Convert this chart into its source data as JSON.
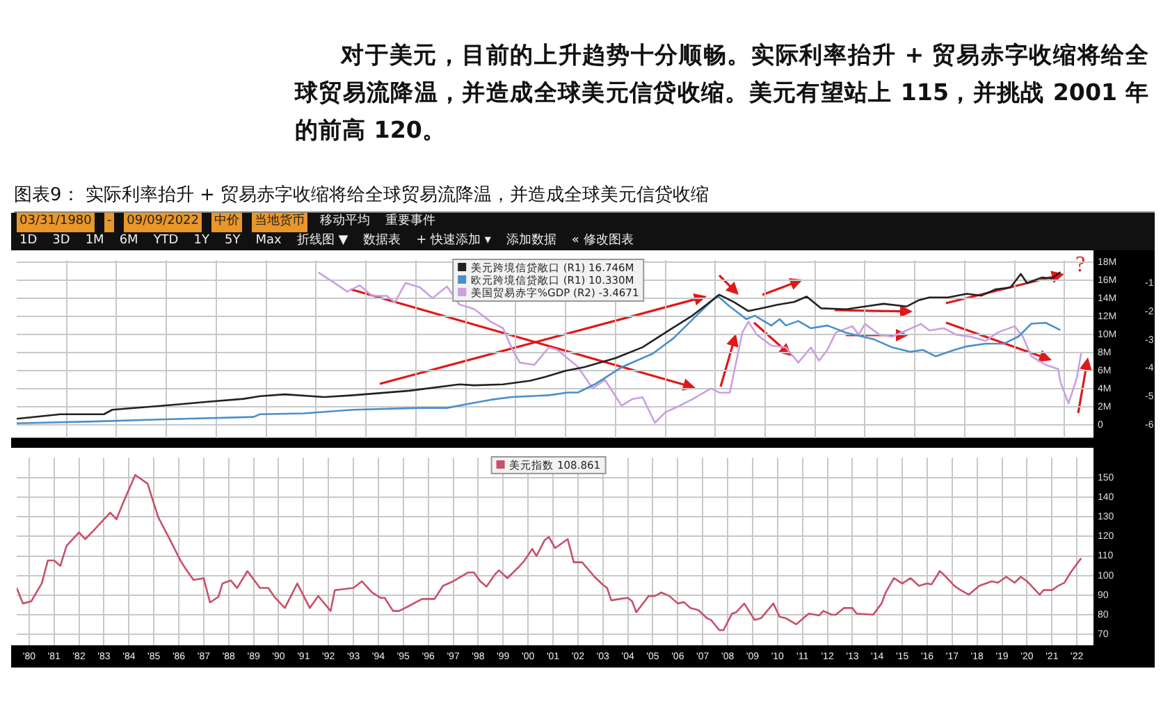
{
  "chart_data": [
    {
      "type": "line",
      "title": "图表9： 实际利率抬升 + 贸易赤字收缩将给全球贸易流降温，并造成全球美元信贷收缩",
      "subtitle": "对于美元，目前的上升趋势十分顺畅。实际利率抬升 + 贸易赤字收缩将给全球贸易流降温，并造成全球美元信贷收缩。美元有望站上 115，并挑战 2001 年的前高 120。",
      "annotations": [
        "03/31/1980",
        "-",
        "09/09/2022",
        "中价",
        "当地货币",
        "移动平均",
        "重要事件",
        "1D",
        "3D",
        "1M",
        "6M",
        "YTD",
        "1Y",
        "5Y",
        "Max",
        "折线图 ▼",
        "数据表",
        "+ 快速添加 ▾",
        "添加数据",
        "« 修改图表",
        "?"
      ],
      "xlim": [
        "1980-01",
        "2023-03"
      ],
      "xticks": [
        {
          "value": "1982-01",
          "label": null
        },
        {
          "value": "1984-01",
          "label": null
        },
        {
          "value": "1986-01",
          "label": null
        },
        {
          "value": "1988-01",
          "label": null
        },
        {
          "value": "1990-01",
          "label": null
        },
        {
          "value": "1992-01",
          "label": null
        },
        {
          "value": "1994-01",
          "label": null
        },
        {
          "value": "1996-01",
          "label": null
        },
        {
          "value": "1998-01",
          "label": null
        },
        {
          "value": "2000-01",
          "label": null
        },
        {
          "value": "2002-01",
          "label": null
        },
        {
          "value": "2004-01",
          "label": null
        },
        {
          "value": "2006-01",
          "label": null
        },
        {
          "value": "2008-01",
          "label": null
        },
        {
          "value": "2010-01",
          "label": null
        },
        {
          "value": "2012-01",
          "label": null
        },
        {
          "value": "2014-01",
          "label": null
        },
        {
          "value": "2016-01",
          "label": null
        },
        {
          "value": "2018-01",
          "label": null
        },
        {
          "value": "2020-01",
          "label": null
        },
        {
          "value": "2022-01",
          "label": null
        }
      ],
      "tick_labels": "y",
      "ylim": [
        -1.4,
        18.2
      ],
      "yticks": [
        0,
        {
          "value": 2,
          "label": "2M"
        },
        {
          "value": 4,
          "label": "4M"
        },
        {
          "value": 6,
          "label": "6M"
        },
        {
          "value": 8,
          "label": "8M"
        },
        {
          "value": 10,
          "label": "10M"
        },
        {
          "value": 12,
          "label": "12M"
        },
        {
          "value": 14,
          "label": "14M"
        },
        {
          "value": 16,
          "label": "16M"
        },
        {
          "value": 18,
          "label": "18M"
        }
      ],
      "y2lim": [
        -6.45,
        -0.2
      ],
      "y2ticks": [
        -1,
        -2,
        -3,
        -4,
        -5,
        -6
      ],
      "grid": true,
      "legend": "top",
      "series": [
        {
          "name": "美元跨境信贷敞口 (R1) 16.746M",
          "color": "#222222",
          "x": [
            "1980-01",
            "1981-10",
            "1983-07",
            "1983-11",
            "1985-09",
            "1987-10",
            "1989-02",
            "1989-10",
            "1990-10",
            "1992-05",
            "1993-07",
            "1995-10",
            "1997-10",
            "1998-05",
            "1999-07",
            "2000-08",
            "2001-03",
            "2002-01",
            "2002-10",
            "2004-01",
            "2005-02",
            "2006-03",
            "2007-02",
            "2008-03",
            "2008-10",
            "2009-05",
            "2009-11",
            "2010-07",
            "2011-03",
            "2011-09",
            "2012-04",
            "2013-04",
            "2014-01",
            "2014-10",
            "2015-09",
            "2016-03",
            "2016-08",
            "2017-05",
            "2018-02",
            "2018-09",
            "2019-04",
            "2019-11",
            "2020-04",
            "2020-07",
            "2021-02",
            "2021-07",
            "2021-11"
          ],
          "values": [
            0.7,
            1.2,
            1.2,
            1.7,
            2.1,
            2.6,
            2.9,
            3.2,
            3.4,
            3.1,
            3.3,
            3.8,
            4.5,
            4.4,
            4.5,
            4.9,
            5.3,
            6.0,
            6.4,
            7.4,
            8.6,
            10.5,
            12.1,
            14.4,
            13.6,
            12.6,
            12.9,
            13.3,
            13.6,
            14.2,
            12.9,
            12.8,
            13.1,
            13.4,
            13.1,
            13.8,
            14.1,
            14.1,
            14.5,
            14.3,
            15.0,
            15.2,
            16.7,
            15.7,
            16.3,
            16.2,
            16.9
          ]
        },
        {
          "name": "欧元跨境信贷敞口 (R1) 10.330M",
          "color": "#4a8fcc",
          "x": [
            "1980-01",
            "1983-02",
            "1986-10",
            "1989-07",
            "1989-10",
            "1991-07",
            "1993-07",
            "1996-03",
            "1997-04",
            "1998-01",
            "1999-01",
            "1999-11",
            "2001-05",
            "2002-02",
            "2002-07",
            "2003-03",
            "2004-04",
            "2005-07",
            "2006-05",
            "2007-04",
            "2008-02",
            "2008-08",
            "2009-04",
            "2009-08",
            "2010-04",
            "2010-08",
            "2010-11",
            "2011-05",
            "2011-11",
            "2012-07",
            "2013-04",
            "2014-05",
            "2015-02",
            "2015-11",
            "2016-05",
            "2016-11",
            "2017-08",
            "2018-02",
            "2018-11",
            "2019-08",
            "2020-03",
            "2020-09",
            "2021-04",
            "2021-11"
          ],
          "values": [
            0.2,
            0.4,
            0.7,
            0.9,
            1.2,
            1.3,
            1.7,
            1.9,
            1.9,
            2.3,
            2.8,
            3.1,
            3.3,
            3.6,
            3.6,
            4.5,
            6.4,
            7.9,
            9.6,
            12.1,
            14.3,
            13.1,
            11.7,
            12.1,
            11.0,
            11.7,
            11.0,
            11.5,
            10.7,
            11.0,
            10.2,
            9.5,
            8.6,
            8.1,
            8.3,
            7.6,
            8.3,
            8.7,
            9.0,
            9.0,
            9.8,
            11.2,
            11.3,
            10.5
          ]
        },
        {
          "name": "美国贸易赤字%GDP (R2) -3.4671",
          "color": "#c9a0e2",
          "axis": "y2",
          "x": [
            "1992-02",
            "1992-10",
            "1993-04",
            "1993-10",
            "1994-04",
            "1994-11",
            "1995-03",
            "1995-08",
            "1996-03",
            "1996-09",
            "1997-04",
            "1997-10",
            "1998-05",
            "1999-01",
            "1999-07",
            "1999-11",
            "2000-03",
            "2000-10",
            "2001-05",
            "2001-09",
            "2002-07",
            "2003-02",
            "2003-08",
            "2004-04",
            "2004-09",
            "2005-02",
            "2005-08",
            "2006-01",
            "2006-08",
            "2007-02",
            "2007-11",
            "2008-03",
            "2008-08",
            "2009-02",
            "2009-05",
            "2009-09",
            "2010-04",
            "2010-11",
            "2011-05",
            "2011-11",
            "2012-03",
            "2012-07",
            "2012-11",
            "2013-07",
            "2013-10",
            "2014-01",
            "2014-08",
            "2015-02",
            "2015-09",
            "2016-04",
            "2016-08",
            "2017-03",
            "2017-09",
            "2018-04",
            "2018-11",
            "2019-05",
            "2020-01",
            "2020-05",
            "2020-09",
            "2021-04",
            "2021-10",
            "2021-11",
            "2022-03",
            "2022-07",
            "2022-09"
          ],
          "values": [
            -0.62,
            -1.0,
            -1.3,
            -1.08,
            -1.45,
            -1.45,
            -1.68,
            -1.0,
            -1.15,
            -1.53,
            -1.12,
            -1.76,
            -1.91,
            -2.36,
            -2.59,
            -3.27,
            -3.8,
            -3.88,
            -3.27,
            -3.35,
            -3.95,
            -4.71,
            -4.41,
            -5.32,
            -5.09,
            -5.02,
            -5.92,
            -5.55,
            -5.32,
            -5.09,
            -4.71,
            -4.86,
            -4.86,
            -2.74,
            -2.36,
            -2.82,
            -3.2,
            -3.27,
            -3.8,
            -3.27,
            -3.73,
            -3.35,
            -2.74,
            -2.52,
            -2.82,
            -2.44,
            -2.82,
            -2.89,
            -2.67,
            -2.44,
            -2.67,
            -2.59,
            -2.82,
            -2.89,
            -3.04,
            -2.74,
            -2.52,
            -2.89,
            -3.58,
            -3.88,
            -4.03,
            -4.48,
            -5.24,
            -4.33,
            -3.47
          ]
        }
      ]
    },
    {
      "type": "line",
      "xlim": [
        "1980-01",
        "2023-03"
      ],
      "xticks": [
        {
          "value": "1980-07",
          "label": "'80"
        },
        {
          "value": "1981-07",
          "label": "'81"
        },
        {
          "value": "1982-07",
          "label": "'82"
        },
        {
          "value": "1983-07",
          "label": "'83"
        },
        {
          "value": "1984-07",
          "label": "'84"
        },
        {
          "value": "1985-07",
          "label": "'85"
        },
        {
          "value": "1986-07",
          "label": "'86"
        },
        {
          "value": "1987-07",
          "label": "'87"
        },
        {
          "value": "1988-07",
          "label": "'88"
        },
        {
          "value": "1989-07",
          "label": "'89"
        },
        {
          "value": "1990-07",
          "label": "'90"
        },
        {
          "value": "1991-07",
          "label": "'91"
        },
        {
          "value": "1992-07",
          "label": "'92"
        },
        {
          "value": "1993-07",
          "label": "'93"
        },
        {
          "value": "1994-07",
          "label": "'94"
        },
        {
          "value": "1995-07",
          "label": "'95"
        },
        {
          "value": "1996-07",
          "label": "'96"
        },
        {
          "value": "1997-07",
          "label": "'97"
        },
        {
          "value": "1998-07",
          "label": "'98"
        },
        {
          "value": "1999-07",
          "label": "'99"
        },
        {
          "value": "2000-07",
          "label": "'00"
        },
        {
          "value": "2001-07",
          "label": "'01"
        },
        {
          "value": "2002-07",
          "label": "'02"
        },
        {
          "value": "2003-07",
          "label": "'03"
        },
        {
          "value": "2004-07",
          "label": "'04"
        },
        {
          "value": "2005-07",
          "label": "'05"
        },
        {
          "value": "2006-07",
          "label": "'06"
        },
        {
          "value": "2007-07",
          "label": "'07"
        },
        {
          "value": "2008-07",
          "label": "'08"
        },
        {
          "value": "2009-07",
          "label": "'09"
        },
        {
          "value": "2010-07",
          "label": "'10"
        },
        {
          "value": "2011-07",
          "label": "'11"
        },
        {
          "value": "2012-07",
          "label": "'12"
        },
        {
          "value": "2013-07",
          "label": "'13"
        },
        {
          "value": "2014-07",
          "label": "'14"
        },
        {
          "value": "2015-07",
          "label": "'15"
        },
        {
          "value": "2016-07",
          "label": "'16"
        },
        {
          "value": "2017-07",
          "label": "'17"
        },
        {
          "value": "2018-07",
          "label": "'18"
        },
        {
          "value": "2019-07",
          "label": "'19"
        },
        {
          "value": "2020-07",
          "label": "'20"
        },
        {
          "value": "2021-07",
          "label": "'21"
        },
        {
          "value": "2022-07",
          "label": "'22"
        }
      ],
      "ylim": [
        64.5,
        160
      ],
      "yticks": [
        70,
        80,
        90,
        100,
        110,
        120,
        130,
        140,
        150
      ],
      "grid": true,
      "legend": "top",
      "series": [
        {
          "name": "美元指数 108.861",
          "color": "#c8506a",
          "x": [
            "1980-01",
            "1980-04",
            "1980-08",
            "1981-01",
            "1981-04",
            "1981-07",
            "1981-10",
            "1982-01",
            "1982-07",
            "1982-10",
            "1983-02",
            "1983-10",
            "1984-01",
            "1984-04",
            "1984-10",
            "1985-04",
            "1985-09",
            "1986-02",
            "1986-08",
            "1986-10",
            "1987-02",
            "1987-07",
            "1987-10",
            "1988-02",
            "1988-04",
            "1988-08",
            "1988-11",
            "1989-04",
            "1989-10",
            "1990-02",
            "1990-05",
            "1990-10",
            "1991-04",
            "1991-10",
            "1992-02",
            "1992-08",
            "1992-10",
            "1993-07",
            "1993-11",
            "1994-04",
            "1994-08",
            "1994-10",
            "1995-02",
            "1995-05",
            "1995-10",
            "1996-04",
            "1996-10",
            "1997-02",
            "1997-07",
            "1998-02",
            "1998-05",
            "1998-08",
            "1998-11",
            "1999-03",
            "1999-05",
            "1999-09",
            "2000-02",
            "2000-05",
            "2000-09",
            "2000-11",
            "2001-03",
            "2001-05",
            "2001-08",
            "2002-02",
            "2002-05",
            "2002-09",
            "2003-03",
            "2003-07",
            "2003-09",
            "2003-11",
            "2004-03",
            "2004-07",
            "2004-09",
            "2004-11",
            "2005-05",
            "2005-08",
            "2005-11",
            "2006-03",
            "2006-07",
            "2006-10",
            "2007-01",
            "2007-05",
            "2007-09",
            "2007-11",
            "2008-03",
            "2008-05",
            "2008-09",
            "2008-11",
            "2009-03",
            "2009-05",
            "2009-08",
            "2009-11",
            "2010-05",
            "2010-08",
            "2010-11",
            "2011-04",
            "2011-10",
            "2012-03",
            "2012-05",
            "2012-09",
            "2012-11",
            "2013-03",
            "2013-07",
            "2013-09",
            "2014-05",
            "2014-09",
            "2014-11",
            "2015-03",
            "2015-07",
            "2015-11",
            "2016-03",
            "2016-07",
            "2016-09",
            "2017-01",
            "2017-03",
            "2017-08",
            "2017-11",
            "2018-03",
            "2018-08",
            "2019-02",
            "2019-05",
            "2019-09",
            "2020-01",
            "2020-04",
            "2020-07",
            "2021-01",
            "2021-03",
            "2021-07",
            "2021-10",
            "2022-01",
            "2022-04",
            "2022-09"
          ],
          "values": [
            93.7,
            85.8,
            86.9,
            96,
            107.7,
            107.7,
            105,
            115.2,
            122,
            118.6,
            123,
            132.1,
            128.7,
            136.6,
            151.3,
            146.8,
            129.9,
            119.7,
            107.3,
            103.9,
            97.8,
            98.7,
            86.3,
            89.2,
            96,
            97.5,
            93.7,
            102.3,
            93.7,
            93.7,
            89.2,
            83.5,
            96,
            83.5,
            89.6,
            82,
            92.6,
            93.7,
            97.1,
            91.4,
            88.7,
            88.7,
            82,
            82,
            84.7,
            88.1,
            88.1,
            94.8,
            97.1,
            101.6,
            101.6,
            97.1,
            94.4,
            100.5,
            102.7,
            98.7,
            103.9,
            107.3,
            113.6,
            110,
            118.1,
            119.7,
            114,
            118.6,
            106.8,
            106.8,
            99.4,
            95.3,
            93.7,
            87.4,
            88.1,
            88.7,
            86.9,
            81.3,
            89.6,
            89.6,
            91.4,
            89.6,
            85.8,
            86.5,
            83.5,
            82.4,
            78.3,
            77.4,
            72.2,
            72.2,
            80.6,
            81.3,
            85.8,
            82.4,
            77.4,
            78.3,
            85.8,
            79,
            78.3,
            75.2,
            80.6,
            79.7,
            82,
            80.1,
            80.1,
            83.5,
            83.5,
            80.6,
            80.1,
            85.8,
            91.4,
            98.7,
            96,
            98.7,
            94.8,
            96,
            95.5,
            102.3,
            100.5,
            94.8,
            92.6,
            90.3,
            94.8,
            97.1,
            96.4,
            99.4,
            96.4,
            99.4,
            97.1,
            90.3,
            92.6,
            92.6,
            94.8,
            96.4,
            101.6,
            108.9
          ]
        }
      ]
    }
  ]
}
